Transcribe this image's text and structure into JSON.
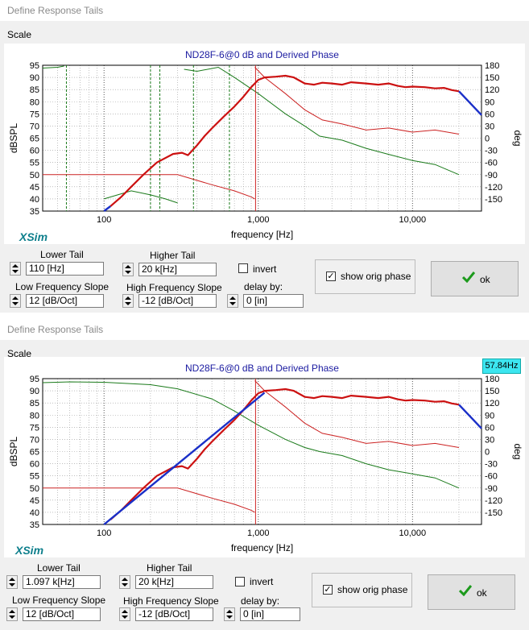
{
  "dialog_title": "Define Response Tails",
  "menu_scale": "Scale",
  "chart_data": [
    {
      "type": "line",
      "title": "ND28F-6@0 dB and Derived Phase",
      "xlabel": "frequency [Hz]",
      "ylabel": "dBSPL",
      "y2label": "deg",
      "x_scale": "log",
      "xlim": [
        40,
        28000
      ],
      "ylim": [
        35,
        95
      ],
      "y2lim": [
        -180,
        180
      ],
      "x_ticks": [
        "100",
        "1,000",
        "10,000"
      ],
      "y_ticks": [
        "95",
        "90",
        "85",
        "80",
        "75",
        "70",
        "65",
        "60",
        "55",
        "50",
        "45",
        "40",
        "35"
      ],
      "y2_ticks": [
        "180",
        "150",
        "120",
        "90",
        "60",
        "30",
        "0",
        "-30",
        "-60",
        "-90",
        "-120",
        "-150"
      ],
      "series": [
        {
          "role": "spl",
          "color": "#cc1111",
          "x": [
            110,
            130,
            150,
            180,
            220,
            280,
            320,
            350,
            400,
            450,
            500,
            600,
            700,
            800,
            900,
            1000,
            1100,
            1300,
            1500,
            1700,
            2000,
            2300,
            2600,
            3000,
            3500,
            4000,
            5000,
            6000,
            7000,
            8000,
            9000,
            10000,
            12000,
            14000,
            16000,
            18000,
            20000
          ],
          "y": [
            37,
            41,
            45,
            50,
            55,
            58.5,
            59,
            58,
            62,
            66,
            69,
            74,
            78,
            82,
            86,
            89,
            90,
            90.3,
            90.7,
            90,
            87.5,
            87,
            87.8,
            87.5,
            87,
            88,
            87.5,
            87,
            87.5,
            86.5,
            86,
            86.2,
            86,
            85.5,
            85.7,
            84.8,
            84.3
          ]
        },
        {
          "role": "blue_tail",
          "color": "#1a2fc8",
          "x": [
            20000,
            28000
          ],
          "y": [
            84.3,
            74.5
          ]
        },
        {
          "role": "blue_low_tail",
          "color": "#1a2fc8",
          "x": [
            100,
            110
          ],
          "y": [
            35,
            37
          ]
        }
      ]
    },
    {
      "type": "line",
      "title": "ND28F-6@0 dB and Derived Phase",
      "xlabel": "frequency [Hz]",
      "ylabel": "dBSPL",
      "y2label": "deg",
      "x_scale": "log",
      "xlim": [
        40,
        28000
      ],
      "ylim": [
        35,
        95
      ],
      "y2lim": [
        -180,
        180
      ],
      "x_ticks": [
        "100",
        "1,000",
        "10,000"
      ],
      "y_ticks": [
        "95",
        "90",
        "85",
        "80",
        "75",
        "70",
        "65",
        "60",
        "55",
        "50",
        "45",
        "40",
        "35"
      ],
      "y2_ticks": [
        "180",
        "150",
        "120",
        "90",
        "60",
        "30",
        "0",
        "-30",
        "-60",
        "-90",
        "-120",
        "-150"
      ],
      "series": [
        {
          "role": "spl",
          "color": "#cc1111",
          "x": [
            110,
            130,
            150,
            180,
            220,
            280,
            320,
            350,
            400,
            450,
            500,
            600,
            700,
            800,
            900,
            1000,
            1100,
            1300,
            1500,
            1700,
            2000,
            2300,
            2600,
            3000,
            3500,
            4000,
            5000,
            6000,
            7000,
            8000,
            9000,
            10000,
            12000,
            14000,
            16000,
            18000,
            20000
          ],
          "y": [
            37,
            41,
            45,
            50,
            55,
            58.5,
            59,
            58,
            62,
            66,
            69,
            74,
            78,
            82,
            86,
            89,
            90,
            90.3,
            90.7,
            90,
            87.5,
            87,
            87.8,
            87.5,
            87,
            88,
            87.5,
            87,
            87.5,
            86.5,
            86,
            86.2,
            86,
            85.5,
            85.7,
            84.8,
            84.3
          ]
        },
        {
          "role": "blue_low_tail",
          "color": "#1a2fc8",
          "x": [
            100,
            1097
          ],
          "y": [
            35,
            89.2
          ]
        },
        {
          "role": "blue_tail",
          "color": "#1a2fc8",
          "x": [
            20000,
            28000
          ],
          "y": [
            84.3,
            74.5
          ]
        }
      ]
    }
  ],
  "panels": [
    {
      "lower_tail_label": "Lower Tail",
      "lower_tail_value": "110 [Hz]",
      "higher_tail_label": "Higher Tail",
      "higher_tail_value": "20 k[Hz]",
      "invert_label": "invert",
      "low_slope_label": "Low Frequency Slope",
      "low_slope_value": "12 [dB/Oct]",
      "high_slope_label": "High Frequency Slope",
      "high_slope_value": "-12 [dB/Oct]",
      "delay_label": "delay by:",
      "delay_value": "0 [in]",
      "show_orig_phase_label": "show orig phase",
      "ok_label": "ok",
      "logo": "XSim"
    },
    {
      "lower_tail_label": "Lower Tail",
      "lower_tail_value": "1.097 k[Hz]",
      "higher_tail_label": "Higher Tail",
      "higher_tail_value": "20 k[Hz]",
      "invert_label": "invert",
      "low_slope_label": "Low Frequency Slope",
      "low_slope_value": "12 [dB/Oct]",
      "high_slope_label": "High Frequency Slope",
      "high_slope_value": "-12 [dB/Oct]",
      "delay_label": "delay by:",
      "delay_value": "0 [in]",
      "show_orig_phase_label": "show orig phase",
      "ok_label": "ok",
      "logo": "XSim"
    }
  ],
  "cursor_readout": "57.84Hz",
  "colors": {
    "spl": "#cc1111",
    "tail": "#1a2fc8",
    "phase_green": "#1a7a1a",
    "phase_red": "#cc2222",
    "logo": "#0e7f8c",
    "readout_bg": "#3ce6f0"
  }
}
